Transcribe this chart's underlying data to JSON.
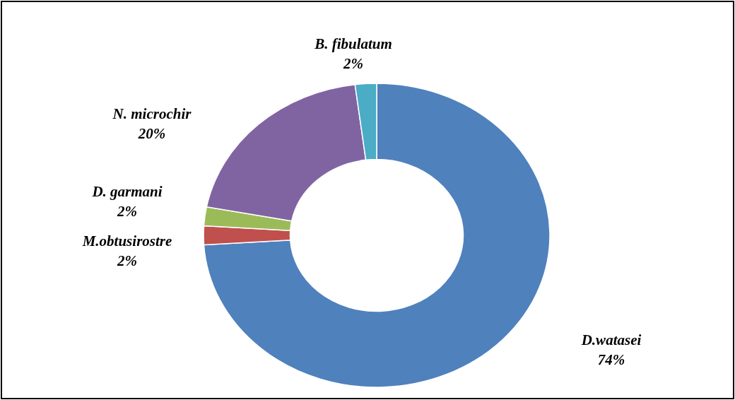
{
  "chart_data": {
    "type": "donut",
    "categories": [
      "D.watasei",
      "M.obtusirostre",
      "D. garmani",
      "N. microchir",
      "B. fibulatum"
    ],
    "values": [
      74,
      2,
      2,
      20,
      2
    ],
    "colors": [
      "#4f81bd",
      "#c0504d",
      "#9bbb59",
      "#8064a2",
      "#4bacc6"
    ],
    "value_labels": [
      "74%",
      "2%",
      "2%",
      "20%",
      "2%"
    ]
  }
}
